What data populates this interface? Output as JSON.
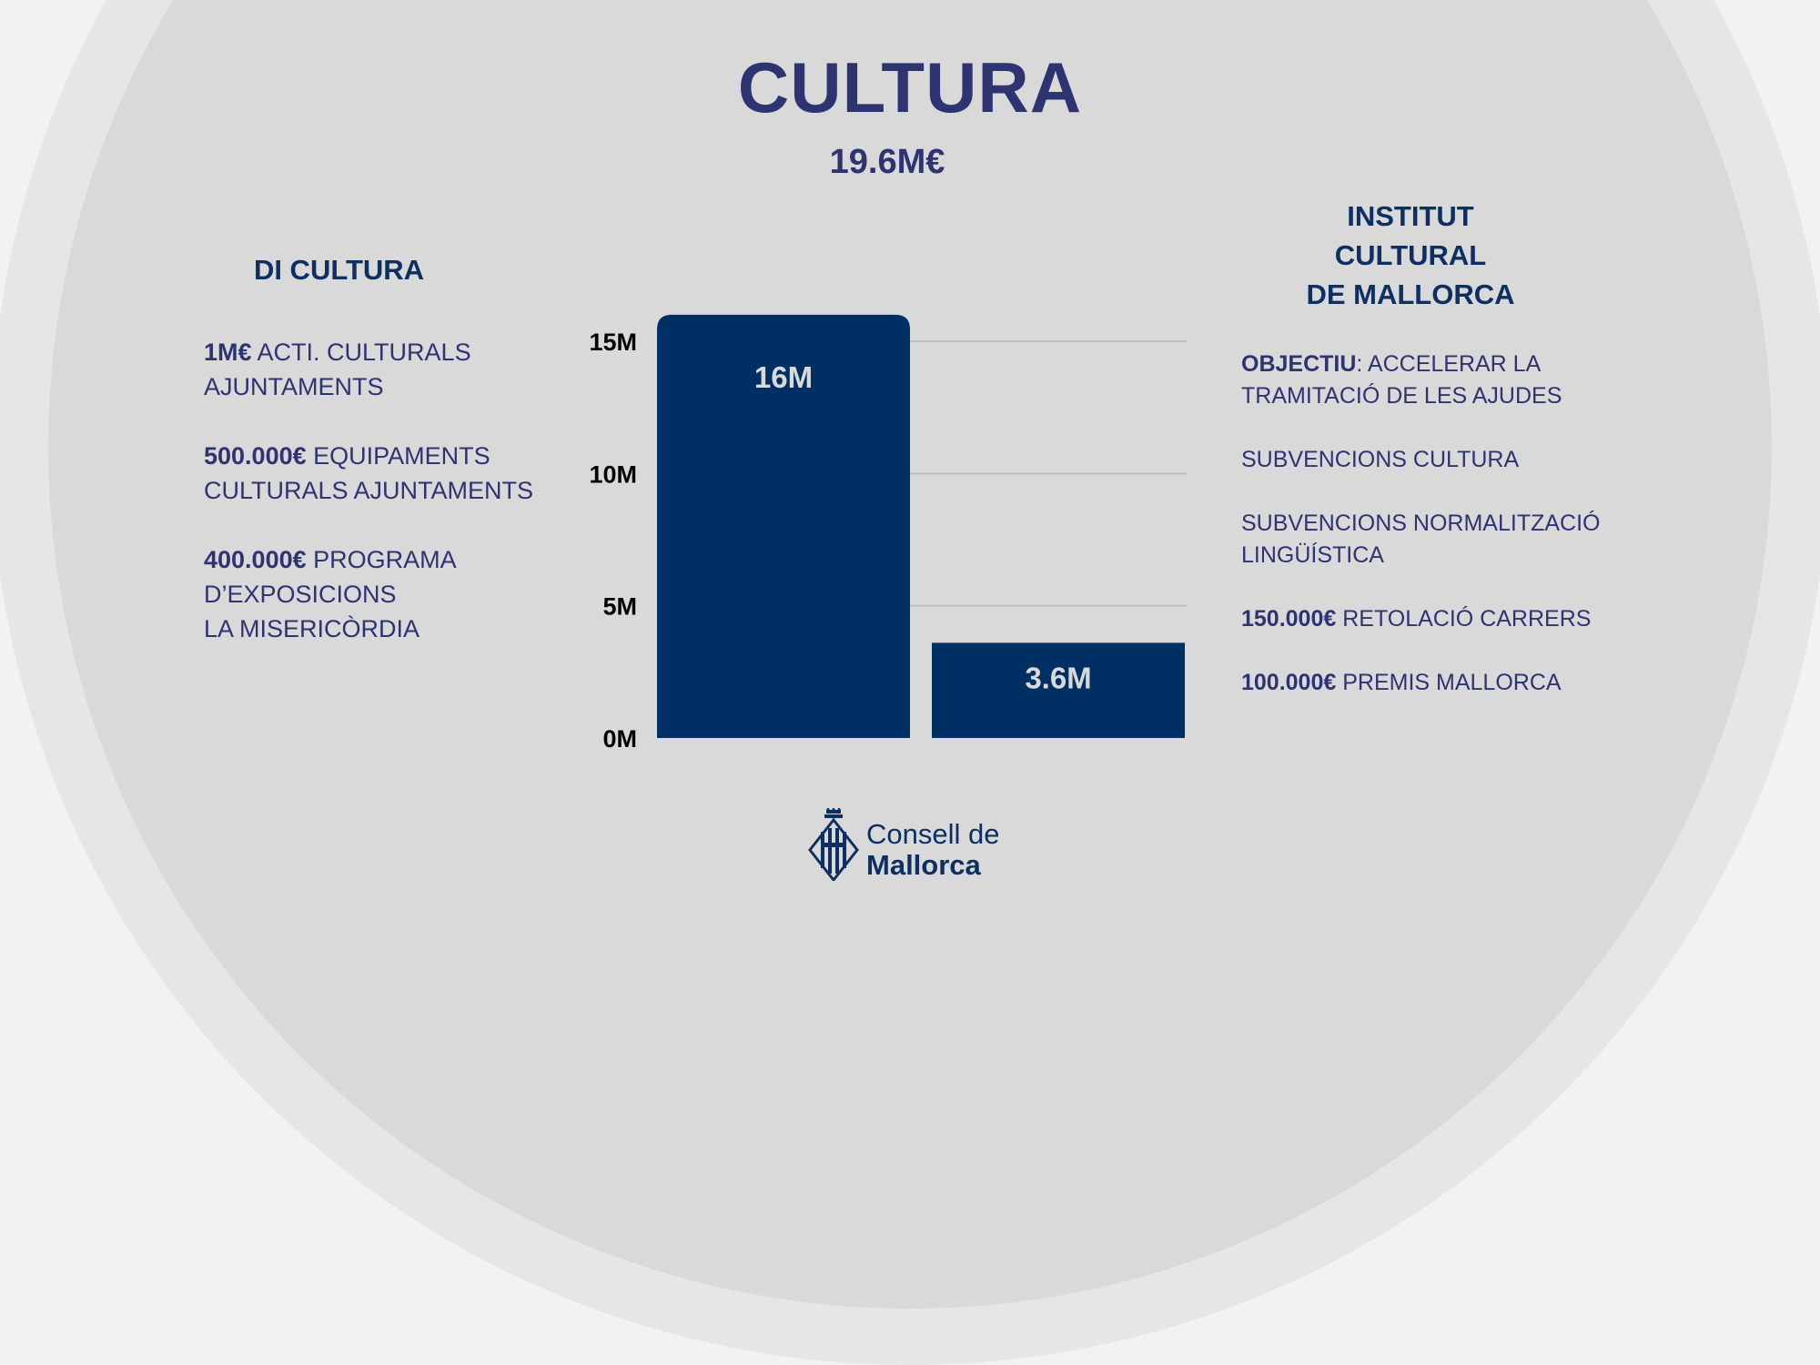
{
  "title": "CULTURA",
  "total": "19.6M€",
  "left": {
    "title": "DI CULTURA",
    "items": [
      {
        "amount": "1M€",
        "lines": [
          "ACTI. CULTURALS",
          "AJUNTAMENTS"
        ]
      },
      {
        "amount": "500.000€",
        "lines": [
          "EQUIPAMENTS",
          "CULTURALS AJUNTAMENTS"
        ]
      },
      {
        "amount": "400.000€",
        "lines": [
          "PROGRAMA",
          "D’EXPOSICIONS",
          "LA MISERICÒRDIA"
        ]
      }
    ]
  },
  "right": {
    "title_lines": [
      "INSTITUT",
      "CULTURAL",
      "DE MALLORCA"
    ],
    "items": [
      {
        "keyword": "OBJECTIU",
        "lines": [
          ": ACCELERAR LA",
          "TRAMITACIÓ DE LES AJUDES"
        ]
      },
      {
        "lines": [
          "SUBVENCIONS CULTURA"
        ]
      },
      {
        "lines": [
          "SUBVENCIONS NORMALITZACIÓ",
          "LINGÜÍSTICA"
        ]
      },
      {
        "amount": "150.000€",
        "lines": [
          "RETOLACIÓ CARRERS"
        ]
      },
      {
        "amount": "100.000€",
        "lines": [
          "PREMIS MALLORCA"
        ]
      }
    ]
  },
  "chart_data": {
    "type": "bar",
    "categories": [
      "DI CULTURA",
      "INSTITUT CULTURAL DE MALLORCA"
    ],
    "values": [
      16,
      3.6
    ],
    "data_labels": [
      "16M",
      "3.6M"
    ],
    "yticks": [
      0,
      5,
      10,
      15
    ],
    "ytick_labels": [
      "0M",
      "5M",
      "10M",
      "15M"
    ],
    "ylim": [
      0,
      16
    ],
    "grid": true,
    "colors": {
      "bar": "#003063",
      "label": "#d9d9d9",
      "grid": "#b8b8b8",
      "tick": "#000000"
    }
  },
  "logo": {
    "line1": "Consell de",
    "line2": "Mallorca"
  },
  "colors": {
    "title": "#2e3372",
    "heading": "#0d2f63",
    "background": "#d9d9d9",
    "outer": "#f2f2f2"
  }
}
